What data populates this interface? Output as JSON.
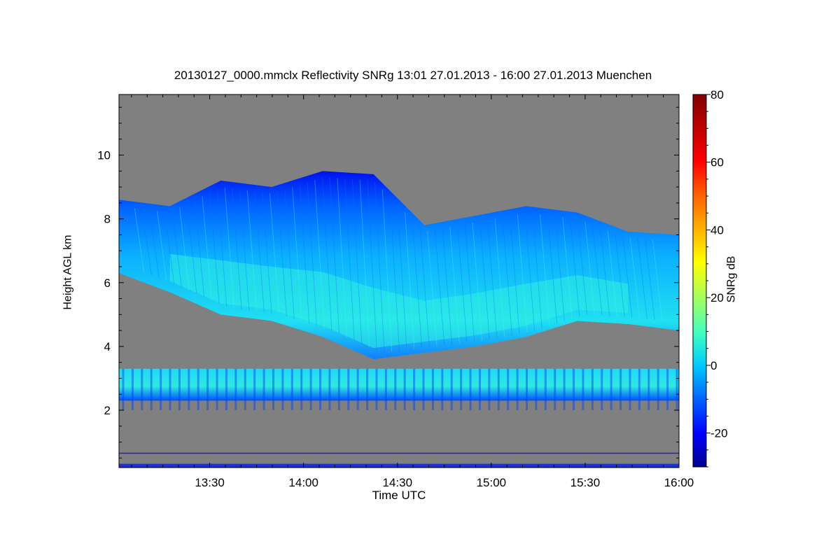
{
  "chart_data": {
    "type": "heatmap",
    "title": "20130127_0000.mmclx Reflectivity SNRg   13:01 27.01.2013 - 16:00 27.01.2013 Muenchen",
    "xlabel": "Time UTC",
    "ylabel": "Height AGL km",
    "colorbar_label": "SNRg dB",
    "x_ticks": [
      "13:30",
      "14:00",
      "14:30",
      "15:00",
      "15:30",
      "16:00"
    ],
    "x_range_minutes": [
      781,
      960
    ],
    "x_tick_minutes": [
      810,
      840,
      870,
      900,
      930,
      960
    ],
    "y_ticks": [
      2,
      4,
      6,
      8,
      10
    ],
    "ylim": [
      0.2,
      11.9
    ],
    "colorbar_ticks": [
      -20,
      0,
      20,
      40,
      60,
      80
    ],
    "colorbar_range": [
      -30,
      80
    ],
    "colormap": [
      "#00008f",
      "#0000ff",
      "#0080ff",
      "#00ffff",
      "#80ff80",
      "#ffff00",
      "#ff8000",
      "#ff0000",
      "#800000"
    ],
    "background_color": "#808080",
    "features": {
      "upper_cloud": {
        "description_top_km": [
          8.6,
          8.4,
          9.2,
          9.0,
          9.5,
          9.4,
          7.8,
          8.1,
          8.4,
          8.2,
          7.6,
          7.5
        ],
        "base_km": [
          6.3,
          5.7,
          5.0,
          4.8,
          4.3,
          3.6,
          3.8,
          4.0,
          4.3,
          4.8,
          4.7,
          4.5
        ],
        "peak_snr_db": 10
      },
      "lower_cloud": {
        "top_km": 3.3,
        "base_km": 2.3,
        "peak_snr_db": 12
      },
      "surface_band_km": 0.65
    },
    "grid": false,
    "legend": "colorbar-right"
  }
}
